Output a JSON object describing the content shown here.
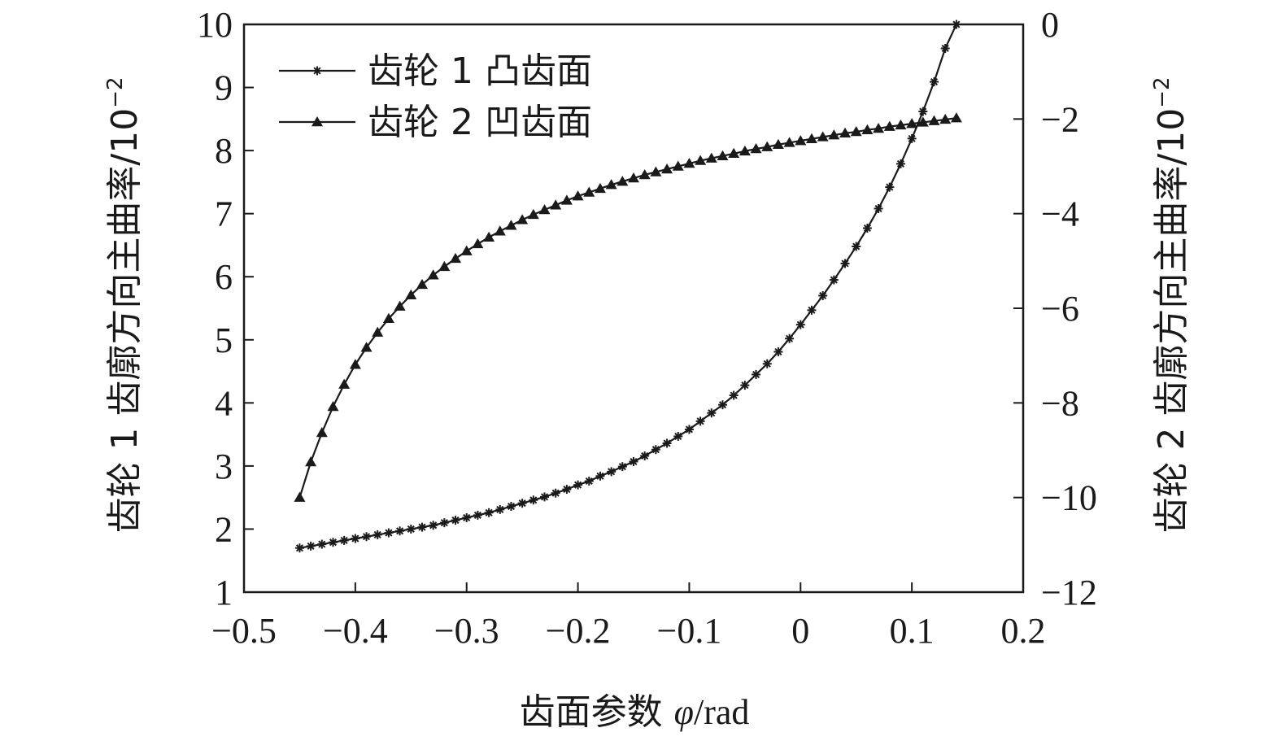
{
  "chart_data": {
    "type": "line",
    "xlabel_main": "齿面参数 ",
    "xlabel_symbol": "φ",
    "xlabel_unit": "/rad",
    "ylabel_left_text": "齿轮 1 齿廓方向主曲率/10",
    "ylabel_left_exp": "−2",
    "ylabel_right_text": "齿轮 2 齿廓方向主曲率/10",
    "ylabel_right_exp": "−2",
    "xlim": [
      -0.5,
      0.2
    ],
    "ylim_left": [
      1,
      10
    ],
    "ylim_right": [
      -12,
      0
    ],
    "x_ticks": [
      -0.5,
      -0.4,
      -0.3,
      -0.2,
      -0.1,
      0,
      0.1,
      0.2
    ],
    "x_tick_labels": [
      "−0.5",
      "−0.4",
      "−0.3",
      "−0.2",
      "−0.1",
      "0",
      "0.1",
      "0.2"
    ],
    "y_left_ticks": [
      1,
      2,
      3,
      4,
      5,
      6,
      7,
      8,
      9,
      10
    ],
    "y_left_tick_labels": [
      "1",
      "2",
      "3",
      "4",
      "5",
      "6",
      "7",
      "8",
      "9",
      "10"
    ],
    "y_right_ticks": [
      -12,
      -10,
      -8,
      -6,
      -4,
      -2,
      0
    ],
    "y_right_tick_labels": [
      "−12",
      "−10",
      "−8",
      "−6",
      "−4",
      "−2",
      "0"
    ],
    "grid": false,
    "legend_position": "top-left",
    "colors": {
      "line": "#1a1a1a",
      "axis": "#1a1a1a"
    },
    "series": [
      {
        "name": "齿轮 1 凸齿面",
        "axis": "left",
        "marker": "star",
        "x": [
          -0.45,
          -0.44,
          -0.43,
          -0.42,
          -0.41,
          -0.4,
          -0.39,
          -0.38,
          -0.37,
          -0.36,
          -0.35,
          -0.34,
          -0.33,
          -0.32,
          -0.31,
          -0.3,
          -0.29,
          -0.28,
          -0.27,
          -0.26,
          -0.25,
          -0.24,
          -0.23,
          -0.22,
          -0.21,
          -0.2,
          -0.19,
          -0.18,
          -0.17,
          -0.16,
          -0.15,
          -0.14,
          -0.13,
          -0.12,
          -0.11,
          -0.1,
          -0.09,
          -0.08,
          -0.07,
          -0.06,
          -0.05,
          -0.04,
          -0.03,
          -0.02,
          -0.01,
          0.0,
          0.01,
          0.02,
          0.03,
          0.04,
          0.05,
          0.06,
          0.07,
          0.08,
          0.09,
          0.1,
          0.11,
          0.12,
          0.13,
          0.14
        ],
        "values": [
          1.7,
          1.73,
          1.76,
          1.79,
          1.82,
          1.85,
          1.88,
          1.91,
          1.94,
          1.97,
          2.0,
          2.03,
          2.06,
          2.1,
          2.14,
          2.18,
          2.22,
          2.26,
          2.31,
          2.36,
          2.41,
          2.46,
          2.51,
          2.57,
          2.63,
          2.7,
          2.76,
          2.84,
          2.91,
          2.99,
          3.07,
          3.16,
          3.26,
          3.36,
          3.47,
          3.58,
          3.71,
          3.84,
          3.97,
          4.12,
          4.28,
          4.45,
          4.62,
          4.81,
          5.02,
          5.24,
          5.47,
          5.7,
          5.95,
          6.21,
          6.48,
          6.77,
          7.08,
          7.42,
          7.79,
          8.19,
          8.62,
          9.09,
          9.62,
          10.2
        ]
      },
      {
        "name": "齿轮 2 凹齿面",
        "axis": "right",
        "marker": "triangle",
        "x": [
          -0.45,
          -0.44,
          -0.43,
          -0.42,
          -0.41,
          -0.4,
          -0.39,
          -0.38,
          -0.37,
          -0.36,
          -0.35,
          -0.34,
          -0.33,
          -0.32,
          -0.31,
          -0.3,
          -0.29,
          -0.28,
          -0.27,
          -0.26,
          -0.25,
          -0.24,
          -0.23,
          -0.22,
          -0.21,
          -0.2,
          -0.19,
          -0.18,
          -0.17,
          -0.16,
          -0.15,
          -0.14,
          -0.13,
          -0.12,
          -0.11,
          -0.1,
          -0.09,
          -0.08,
          -0.07,
          -0.06,
          -0.05,
          -0.04,
          -0.03,
          -0.02,
          -0.01,
          0.0,
          0.01,
          0.02,
          0.03,
          0.04,
          0.05,
          0.06,
          0.07,
          0.08,
          0.09,
          0.1,
          0.11,
          0.12,
          0.13,
          0.14
        ],
        "values": [
          -10.0,
          -9.25,
          -8.63,
          -8.08,
          -7.61,
          -7.19,
          -6.83,
          -6.51,
          -6.22,
          -5.96,
          -5.72,
          -5.5,
          -5.3,
          -5.12,
          -4.95,
          -4.79,
          -4.64,
          -4.5,
          -4.37,
          -4.25,
          -4.13,
          -4.02,
          -3.92,
          -3.82,
          -3.72,
          -3.63,
          -3.55,
          -3.47,
          -3.39,
          -3.32,
          -3.25,
          -3.18,
          -3.12,
          -3.06,
          -3.0,
          -2.94,
          -2.88,
          -2.83,
          -2.78,
          -2.73,
          -2.68,
          -2.63,
          -2.59,
          -2.54,
          -2.5,
          -2.46,
          -2.42,
          -2.38,
          -2.34,
          -2.3,
          -2.27,
          -2.23,
          -2.2,
          -2.16,
          -2.13,
          -2.1,
          -2.07,
          -2.04,
          -2.01,
          -1.98
        ]
      }
    ]
  }
}
